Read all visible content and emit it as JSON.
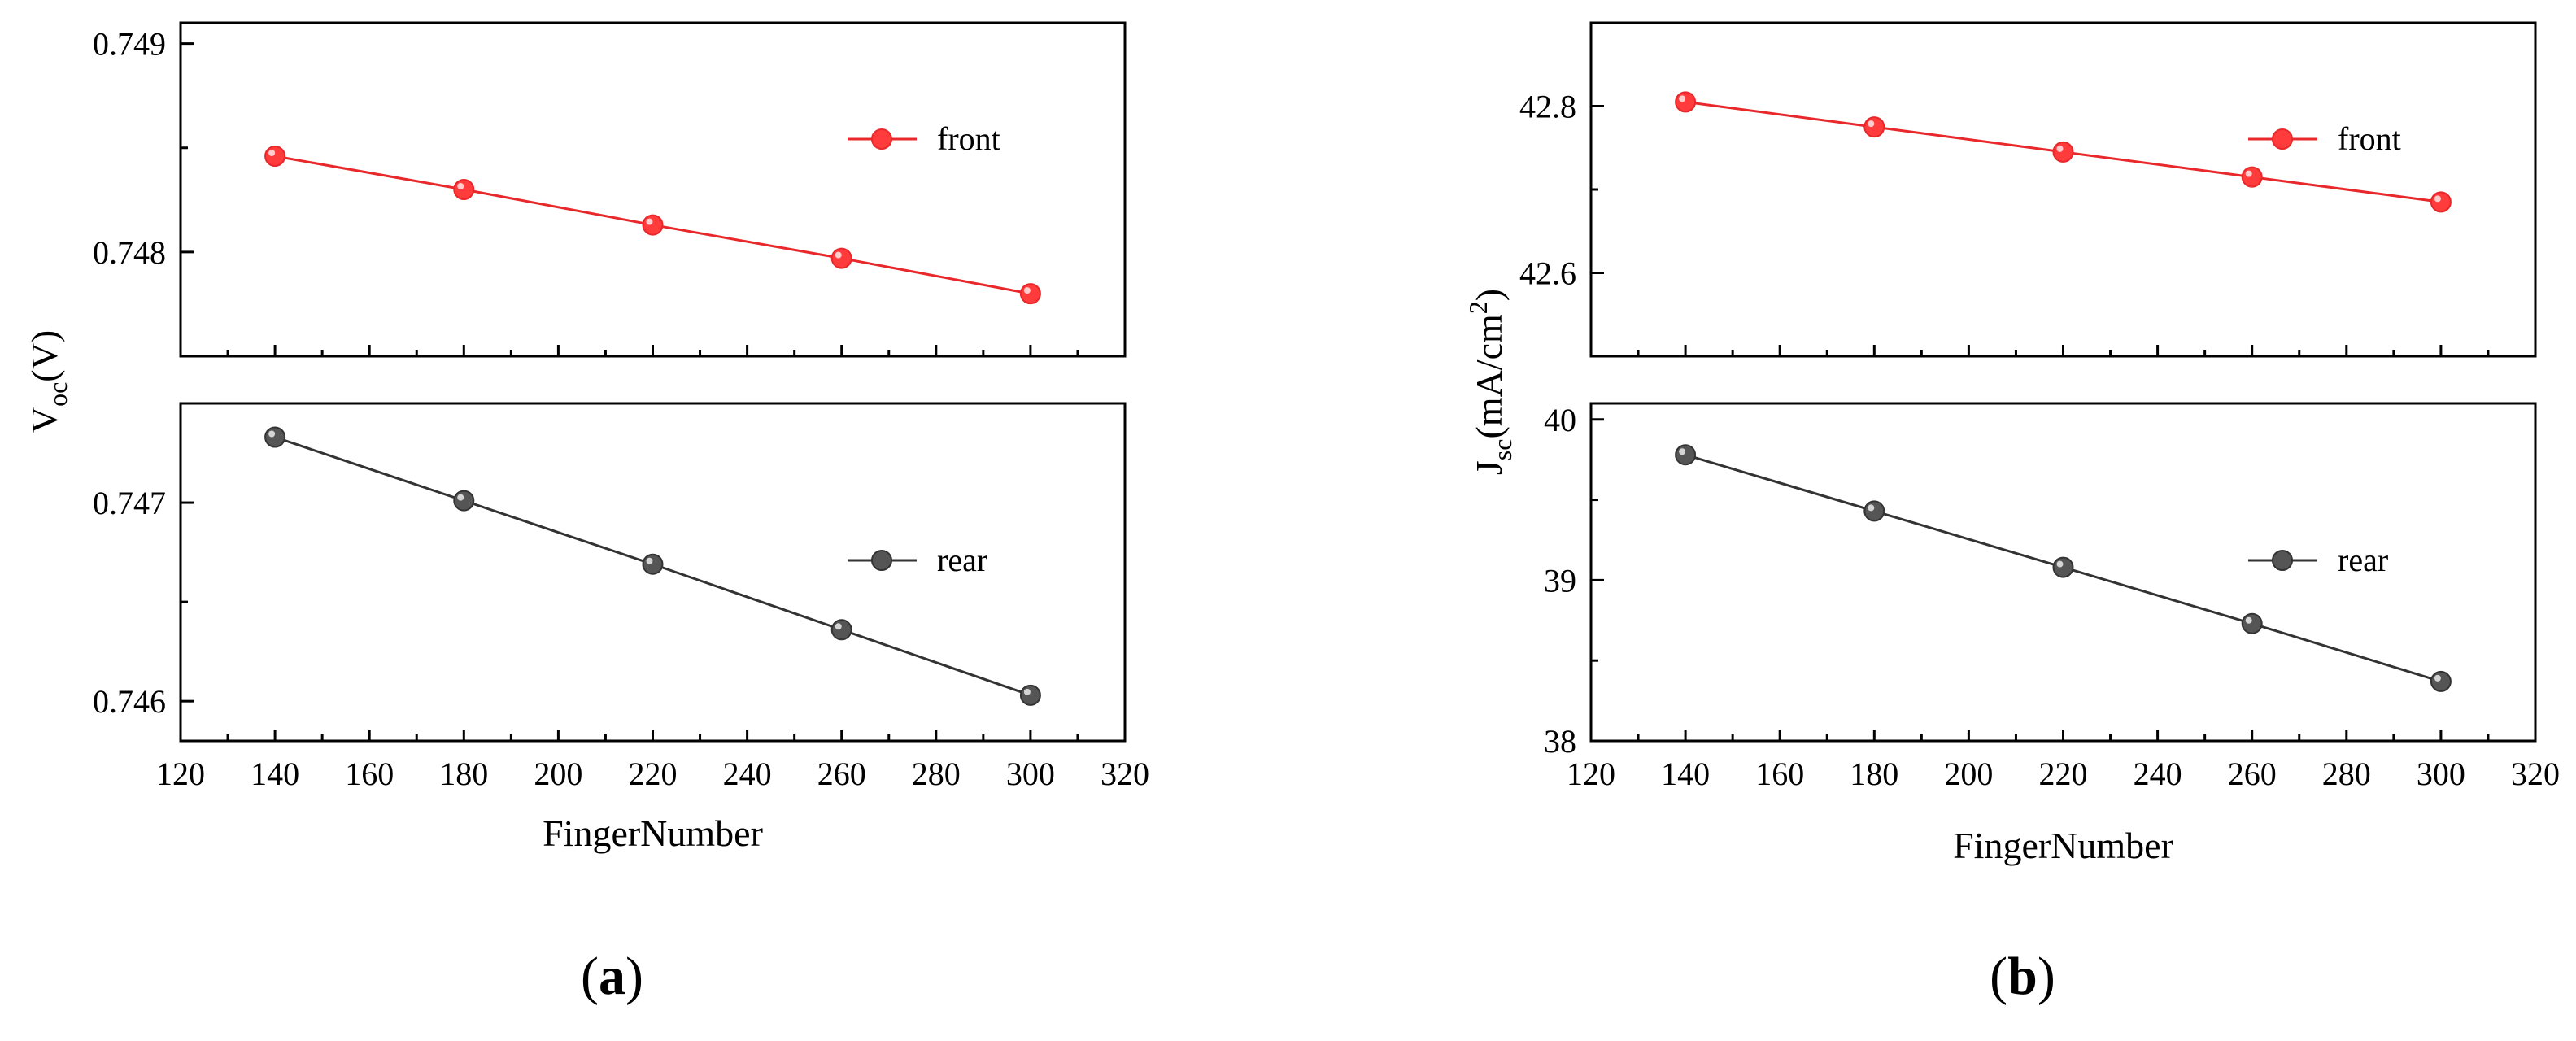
{
  "chart_data": [
    {
      "type": "line",
      "panel_label": "a",
      "xlabel": "FingerNumber",
      "ylabel_main": "V",
      "ylabel_sub": "oc",
      "ylabel_unit": "(V)",
      "xlim": [
        120,
        320
      ],
      "xticks": [
        120,
        140,
        160,
        180,
        200,
        220,
        240,
        260,
        280,
        300,
        320
      ],
      "x": [
        140,
        180,
        220,
        260,
        300
      ],
      "subplots": [
        {
          "position": "top",
          "ylim": [
            0.7475,
            0.7491
          ],
          "yticks": [
            0.748,
            0.749
          ],
          "ytick_labels": [
            "0.748",
            "0.749"
          ],
          "series": [
            {
              "name": "front",
              "color": "#e8282b",
              "marker_color": "#ff3b3b",
              "values": [
                0.74846,
                0.7483,
                0.74813,
                0.74797,
                0.7478
              ]
            }
          ],
          "legend_position": "top-right"
        },
        {
          "position": "bottom",
          "ylim": [
            0.7458,
            0.7475
          ],
          "yticks": [
            0.746,
            0.747
          ],
          "ytick_labels": [
            "0.746",
            "0.747"
          ],
          "series": [
            {
              "name": "rear",
              "color": "#333333",
              "marker_color": "#555555",
              "values": [
                0.74733,
                0.74701,
                0.74669,
                0.74636,
                0.74603
              ]
            }
          ],
          "legend_position": "right"
        }
      ]
    },
    {
      "type": "line",
      "panel_label": "b",
      "xlabel": "FingerNumber",
      "ylabel_main": "J",
      "ylabel_sub": "sc",
      "ylabel_unit": "(mA/cm",
      "ylabel_sup": "2",
      "ylabel_close": ")",
      "xlim": [
        120,
        320
      ],
      "xticks": [
        120,
        140,
        160,
        180,
        200,
        220,
        240,
        260,
        280,
        300,
        320
      ],
      "x": [
        140,
        180,
        220,
        260,
        300
      ],
      "subplots": [
        {
          "position": "top",
          "ylim": [
            42.5,
            42.9
          ],
          "yticks": [
            42.6,
            42.8
          ],
          "ytick_labels": [
            "42.6",
            "42.8"
          ],
          "series": [
            {
              "name": "front",
              "color": "#e8282b",
              "marker_color": "#ff3b3b",
              "values": [
                42.805,
                42.775,
                42.745,
                42.715,
                42.685
              ]
            }
          ],
          "legend_position": "top-right"
        },
        {
          "position": "bottom",
          "ylim": [
            38.0,
            40.1
          ],
          "yticks": [
            38,
            39,
            40
          ],
          "ytick_labels": [
            "38",
            "39",
            "40"
          ],
          "series": [
            {
              "name": "rear",
              "color": "#333333",
              "marker_color": "#555555",
              "values": [
                39.78,
                39.43,
                39.08,
                38.73,
                38.37
              ]
            }
          ],
          "legend_position": "right"
        }
      ]
    }
  ]
}
